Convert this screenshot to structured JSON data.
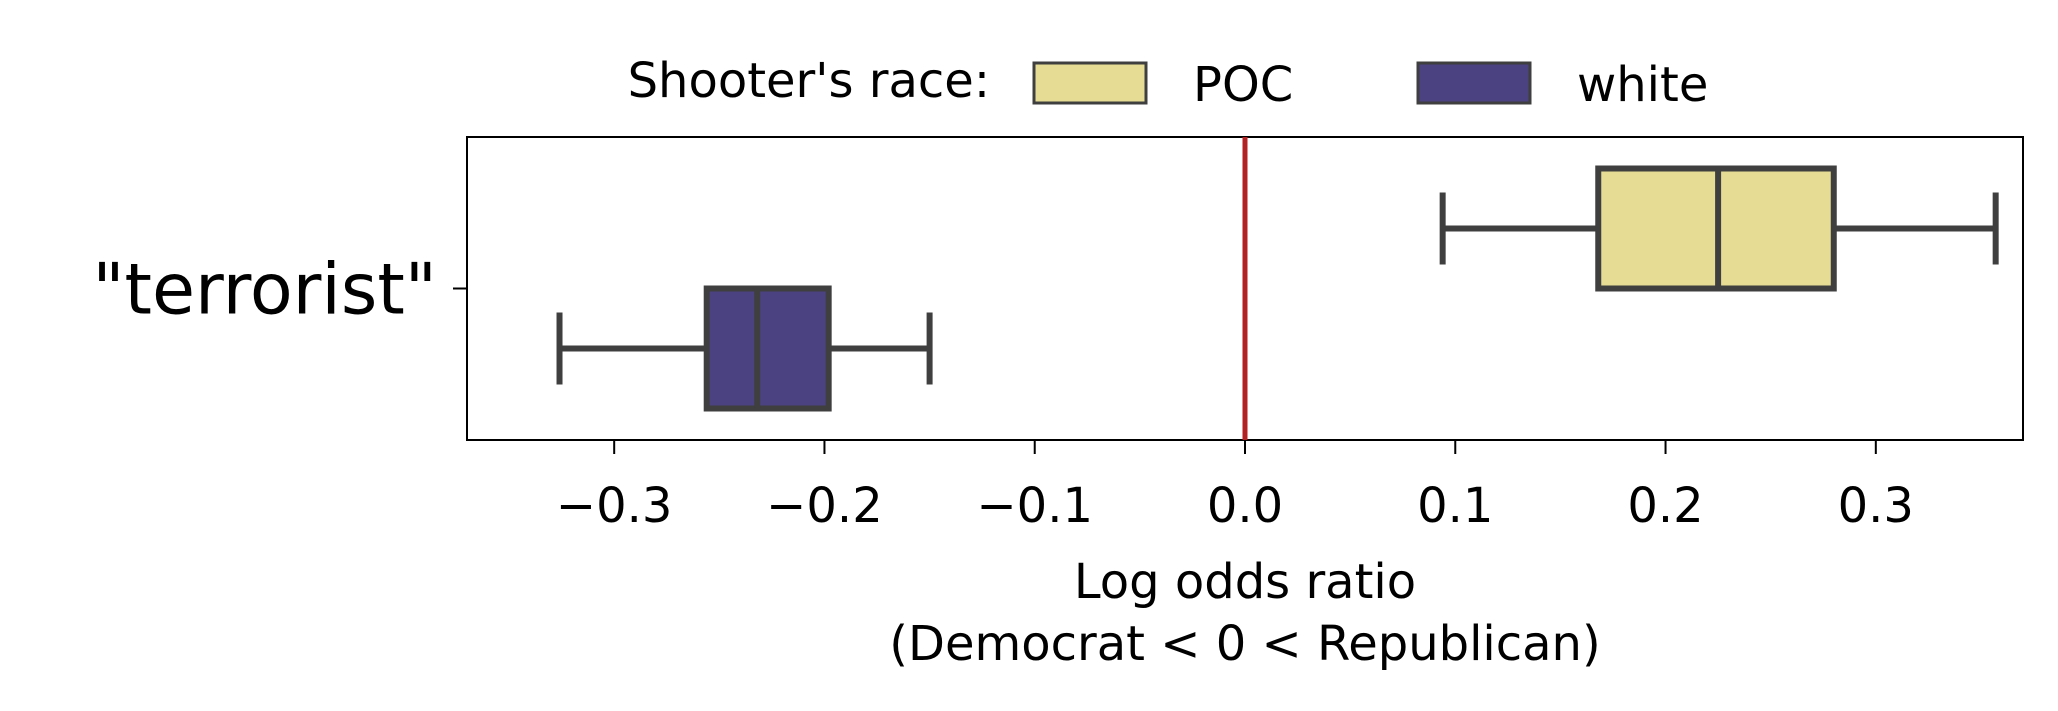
{
  "chart_data": {
    "type": "boxplot",
    "orientation": "horizontal",
    "title": "",
    "legend": {
      "title": "Shooter's race:",
      "entries": [
        {
          "label": "POC",
          "color": "#e6dc94"
        },
        {
          "label": "white",
          "color": "#4b4281"
        }
      ],
      "placement": "top"
    },
    "categories": [
      "\"terrorist\""
    ],
    "series": [
      {
        "name": "POC",
        "color": "#e6dc94",
        "boxes": [
          {
            "category": "\"terrorist\"",
            "whisker_low": 0.094,
            "q1": 0.168,
            "median": 0.225,
            "q3": 0.28,
            "whisker_high": 0.357
          }
        ]
      },
      {
        "name": "white",
        "color": "#4b4281",
        "boxes": [
          {
            "category": "\"terrorist\"",
            "whisker_low": -0.326,
            "q1": -0.256,
            "median": -0.232,
            "q3": -0.198,
            "whisker_high": -0.15
          }
        ]
      }
    ],
    "xlabel": "Log odds ratio\n(Democrat < 0 < Republican)",
    "xlabel_lines": [
      "Log odds ratio",
      "(Democrat < 0 < Republican)"
    ],
    "xlim": [
      -0.37,
      0.37
    ],
    "xticks": [
      -0.3,
      -0.2,
      -0.1,
      0.0,
      0.1,
      0.2,
      0.3
    ],
    "xtick_labels": [
      "−0.3",
      "−0.2",
      "−0.1",
      "0.0",
      "0.1",
      "0.2",
      "0.3"
    ],
    "reference_line": {
      "x": 0.0,
      "color": "#b22222"
    },
    "grid": false,
    "box_edge_color": "#3f3f3f"
  }
}
